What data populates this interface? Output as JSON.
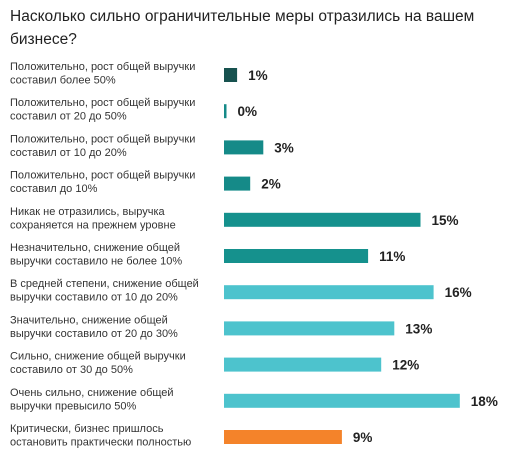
{
  "chart_data": {
    "type": "bar",
    "orientation": "horizontal",
    "title": "Насколько сильно ограничительные меры отразились на вашем бизнесе?",
    "value_suffix": "%",
    "categories": [
      [
        "Положительно, рост общей выручки",
        "составил более 50%"
      ],
      [
        "Положительно, рост общей выручки",
        "составил от 20 до 50%"
      ],
      [
        "Положительно, рост общей выручки",
        "составил от 10 до 20%"
      ],
      [
        "Положительно, рост общей выручки",
        "составил до 10%"
      ],
      [
        "Никак не отразились, выручка",
        "сохраняется на прежнем уровне"
      ],
      [
        "Незначительно, снижение общей",
        "выручки составило не более 10%"
      ],
      [
        "В средней степени, снижение общей",
        "выручки составило от 10 до 20%"
      ],
      [
        "Значительно, снижение общей",
        "выручки составило от 20 до 30%"
      ],
      [
        "Сильно, снижение общей выручки",
        "составило от 30 до 50%"
      ],
      [
        "Очень сильно, снижение общей",
        "выручки превысило 50%"
      ],
      [
        "Критически, бизнес пришлось",
        "остановить практически полностью"
      ]
    ],
    "values": [
      1,
      0,
      3,
      2,
      15,
      11,
      16,
      13,
      12,
      18,
      9
    ],
    "colors": [
      "#17524f",
      "#158a88",
      "#158a88",
      "#158a88",
      "#15918d",
      "#15918d",
      "#4dc3cd",
      "#4dc3cd",
      "#4dc3cd",
      "#4dc3cd",
      "#f4832a"
    ],
    "grid": false,
    "legend": "none"
  }
}
